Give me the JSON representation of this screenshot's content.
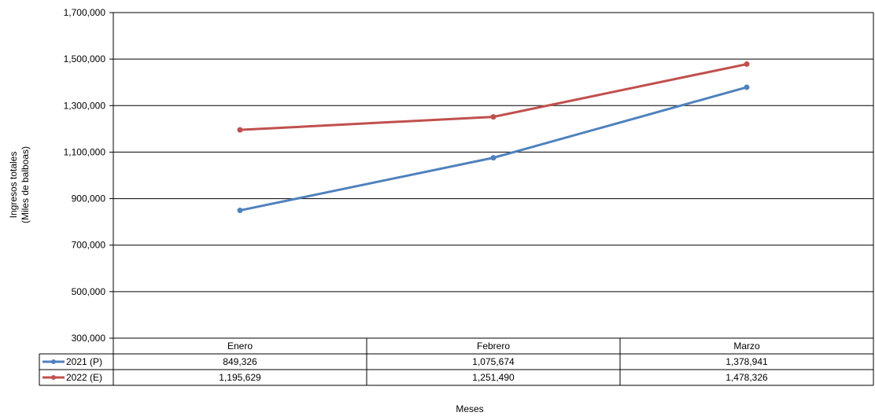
{
  "chart_data": {
    "type": "line",
    "categories": [
      "Enero",
      "Febrero",
      "Marzo"
    ],
    "series": [
      {
        "name": "2021 (P)",
        "values": [
          849326,
          1075674,
          1378941
        ],
        "labels": [
          "849,326",
          "1,075,674",
          "1,378,941"
        ],
        "color": "#4f81bd"
      },
      {
        "name": "2022 (E)",
        "values": [
          1195629,
          1251490,
          1478326
        ],
        "labels": [
          "1,195,629",
          "1,251,490",
          "1,478,326"
        ],
        "color": "#c0504d"
      }
    ],
    "ylabel_line1": "Ingresos totales",
    "ylabel_line2": "(Miles de balboas)",
    "xlabel": "Meses",
    "ylim": [
      300000,
      1700000
    ],
    "yticks": [
      300000,
      500000,
      700000,
      900000,
      1100000,
      1300000,
      1500000,
      1700000
    ],
    "ytick_labels": [
      "300,000",
      "500,000",
      "700,000",
      "900,000",
      "1,100,000",
      "1,300,000",
      "1,500,000",
      "1,700,000"
    ],
    "grid": true,
    "legend": "data-table"
  }
}
